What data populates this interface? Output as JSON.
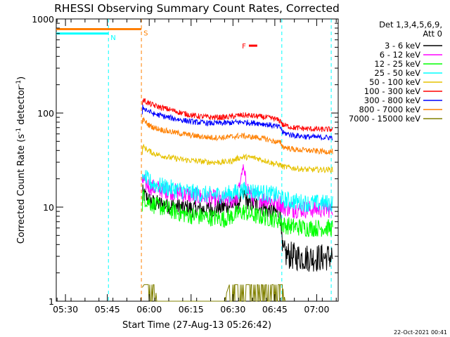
{
  "chart_data": {
    "type": "line",
    "title": "RHESSI Observing Summary Count Rates, Corrected",
    "xlabel": "Start Time (27-Aug-13 05:26:42)",
    "ylabel_main": "Corrected Count Rate (s",
    "ylabel_exp1": "-1",
    "ylabel_mid": " detector",
    "ylabel_exp2": "-1",
    "ylabel_end": ")",
    "yscale": "log",
    "ylim": [
      1,
      1000
    ],
    "xlim_minutes": [
      0,
      101
    ],
    "x_ticks": [
      {
        "min": 3.3,
        "label": "05:30"
      },
      {
        "min": 18.3,
        "label": "05:45"
      },
      {
        "min": 33.3,
        "label": "06:00"
      },
      {
        "min": 48.3,
        "label": "06:15"
      },
      {
        "min": 63.3,
        "label": "06:30"
      },
      {
        "min": 78.3,
        "label": "06:45"
      },
      {
        "min": 93.3,
        "label": "07:00"
      }
    ],
    "y_ticks": [
      {
        "value": 1,
        "label": "1"
      },
      {
        "value": 10,
        "label": "10"
      },
      {
        "value": 100,
        "label": "100"
      },
      {
        "value": 1000,
        "label": "1000"
      }
    ],
    "legend": {
      "header1": "Det 1,3,4,5,6,9,",
      "header2": "Att 0",
      "position": "top-right"
    },
    "markers": [
      {
        "label": "N",
        "color": "#00ffff",
        "x": [
          0,
          18.7
        ],
        "y": 700
      },
      {
        "label": "S",
        "color": "#ff8000",
        "x": [
          0,
          30.5
        ],
        "y": 780
      },
      {
        "label": "F",
        "color": "#ff0000",
        "x": [
          69,
          72
        ],
        "y": 520
      }
    ],
    "vlines": [
      {
        "x": 18.7,
        "color": "#00ffff"
      },
      {
        "x": 30.5,
        "color": "#ff8000"
      },
      {
        "x": 80.8,
        "color": "#00ffff"
      },
      {
        "x": 98.5,
        "color": "#00ffff"
      }
    ],
    "series": [
      {
        "name": "3 - 6 keV",
        "color": "#000000",
        "x": [
          30.8,
          31,
          33,
          35,
          40,
          45,
          50,
          55,
          60,
          63,
          65,
          67,
          69,
          72,
          75,
          78,
          80.5,
          81,
          85,
          90,
          95,
          99
        ],
        "y": [
          12,
          14,
          12,
          11,
          10.5,
          10,
          9.5,
          9.5,
          10,
          10.5,
          11,
          14,
          11,
          10.5,
          9.5,
          9,
          8.5,
          3.2,
          3,
          2.9,
          2.9,
          3
        ]
      },
      {
        "name": "6 - 12 keV",
        "color": "#ff00ff",
        "x": [
          30.8,
          31,
          33,
          35,
          40,
          45,
          50,
          55,
          60,
          63,
          65,
          66,
          67,
          68,
          70,
          72,
          75,
          78,
          80.5,
          81,
          85,
          90,
          95,
          99
        ],
        "y": [
          16,
          19,
          17,
          16,
          15,
          14,
          13,
          12.5,
          12,
          12,
          13,
          20,
          27,
          17,
          13,
          12.5,
          12,
          11.5,
          11,
          10,
          9.5,
          9.5,
          9.5,
          9.5
        ]
      },
      {
        "name": "12 - 25 keV",
        "color": "#00ff00",
        "x": [
          30.8,
          31,
          33,
          35,
          40,
          45,
          50,
          55,
          60,
          63,
          65,
          67,
          69,
          72,
          75,
          78,
          80.5,
          81,
          85,
          90,
          95,
          99
        ],
        "y": [
          11,
          13,
          11.5,
          10.5,
          9.5,
          8.5,
          8,
          7.8,
          7.5,
          8,
          8.5,
          9,
          8.5,
          8,
          7.8,
          7.5,
          7.2,
          6.5,
          6.2,
          6,
          6,
          6
        ]
      },
      {
        "name": "25 - 50 keV",
        "color": "#00ffff",
        "x": [
          30.8,
          31,
          33,
          35,
          40,
          45,
          50,
          55,
          60,
          63,
          65,
          67,
          69,
          72,
          75,
          78,
          80.5,
          81,
          85,
          90,
          95,
          99
        ],
        "y": [
          18,
          21,
          19,
          17.5,
          16,
          15,
          14,
          13.5,
          13.5,
          14,
          14.5,
          15,
          15,
          14.5,
          14,
          13.5,
          13,
          12,
          11.5,
          11,
          11,
          11
        ]
      },
      {
        "name": "50 - 100 keV",
        "color": "#e6c200",
        "x": [
          30.8,
          31,
          33,
          35,
          40,
          45,
          50,
          55,
          60,
          63,
          65,
          67,
          69,
          72,
          75,
          78,
          80.5,
          81,
          85,
          90,
          95,
          99
        ],
        "y": [
          38,
          44,
          40,
          37,
          34,
          32,
          31,
          30,
          30,
          31,
          33,
          34,
          34,
          33,
          31,
          29,
          28,
          27,
          26,
          25,
          25,
          25
        ]
      },
      {
        "name": "100 - 300 keV",
        "color": "#ff0000",
        "x": [
          30.8,
          31,
          33,
          35,
          40,
          45,
          50,
          55,
          60,
          63,
          65,
          67,
          69,
          72,
          75,
          78,
          80.5,
          81,
          85,
          90,
          95,
          99
        ],
        "y": [
          118,
          138,
          128,
          120,
          110,
          100,
          93,
          90,
          90,
          92,
          94,
          95,
          94,
          92,
          90,
          87,
          82,
          75,
          70,
          68,
          67,
          67
        ]
      },
      {
        "name": "300 - 800 keV",
        "color": "#0000ff",
        "x": [
          30.8,
          31,
          33,
          35,
          40,
          45,
          50,
          55,
          60,
          63,
          65,
          67,
          69,
          72,
          75,
          78,
          80.5,
          81,
          85,
          90,
          95,
          99
        ],
        "y": [
          100,
          115,
          105,
          98,
          90,
          84,
          80,
          78,
          78,
          79,
          80,
          80,
          79,
          78,
          76,
          73,
          70,
          62,
          58,
          56,
          55,
          55
        ]
      },
      {
        "name": "800 - 7000 keV",
        "color": "#ff8000",
        "x": [
          30.8,
          31,
          33,
          35,
          40,
          45,
          50,
          55,
          60,
          63,
          65,
          67,
          69,
          72,
          75,
          78,
          80.5,
          81,
          85,
          90,
          95,
          99
        ],
        "y": [
          72,
          85,
          75,
          70,
          64,
          60,
          57,
          55,
          55,
          56,
          57,
          57,
          56,
          55,
          53,
          50,
          48,
          44,
          41,
          40,
          39,
          39
        ]
      },
      {
        "name": "7000 - 15000 keV",
        "color": "#808000",
        "x": [
          30.8,
          31.5,
          32,
          33.5,
          34,
          35.5,
          36,
          60,
          62,
          64,
          66,
          68,
          70,
          72,
          74,
          76,
          78,
          80,
          81,
          82
        ],
        "y": [
          1.4,
          1.5,
          1.5,
          1.5,
          1.5,
          1.5,
          1.0,
          1.0,
          1.5,
          1.5,
          1.5,
          1.5,
          1.5,
          1.5,
          1.5,
          1.5,
          1.5,
          1.5,
          1.5,
          1.0
        ]
      }
    ]
  },
  "footer": {
    "date_stamp": "22-Oct-2021 00:41"
  }
}
